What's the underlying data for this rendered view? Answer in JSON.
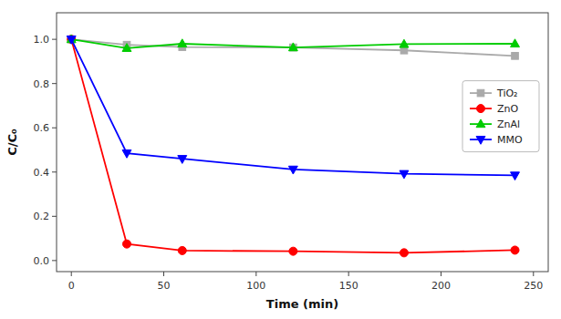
{
  "chart_data": {
    "type": "line",
    "xlabel": "Time (min)",
    "ylabel": "C/C₀",
    "x": [
      0,
      30,
      60,
      120,
      180,
      240
    ],
    "series": [
      {
        "name": "TiO₂",
        "color": "#aaaaaa",
        "marker": "square",
        "values": [
          1.0,
          0.975,
          0.965,
          0.963,
          0.95,
          0.925
        ]
      },
      {
        "name": "ZnO",
        "color": "#ff0000",
        "marker": "circle",
        "values": [
          1.0,
          0.075,
          0.045,
          0.042,
          0.035,
          0.047
        ]
      },
      {
        "name": "ZnAl",
        "color": "#00cc00",
        "marker": "triangle-up",
        "values": [
          1.0,
          0.96,
          0.98,
          0.963,
          0.978,
          0.98
        ]
      },
      {
        "name": "MMO",
        "color": "#0000ff",
        "marker": "triangle-down",
        "values": [
          1.0,
          0.485,
          0.46,
          0.412,
          0.392,
          0.385
        ]
      }
    ],
    "xlim": [
      -8,
      258
    ],
    "ylim": [
      -0.05,
      1.12
    ],
    "xticks": [
      0,
      50,
      100,
      150,
      200,
      250
    ],
    "yticks": [
      {
        "value": 0.0,
        "label": "0.0"
      },
      0.2,
      0.4,
      0.6,
      0.8,
      {
        "value": 1.0,
        "label": "1.0"
      }
    ],
    "grid": false,
    "legend": "right"
  }
}
